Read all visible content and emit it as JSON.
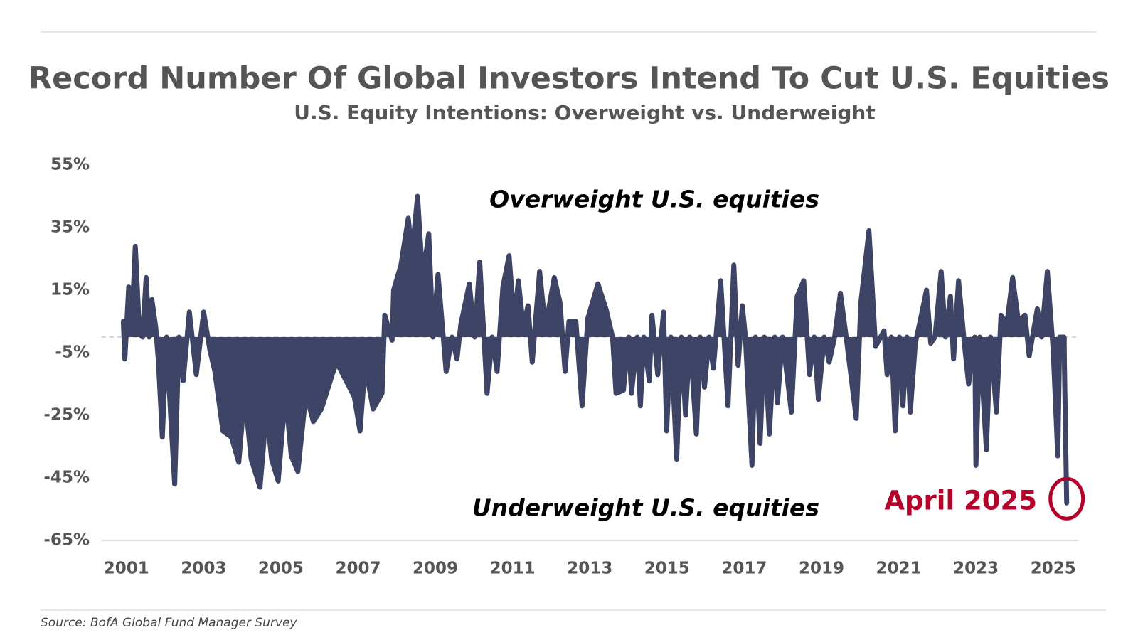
{
  "chart_data": {
    "type": "area",
    "title": "Record Number Of Global Investors Intend To Cut U.S. Equities",
    "subtitle": "U.S. Equity Intentions: Overweight vs. Underweight",
    "annotations": [
      "Overweight U.S. equities",
      "Underweight U.S. equities",
      "April 2025"
    ],
    "source": "Source: BofA Global Fund Manager Survey",
    "color": "#3d4466",
    "xlim": [
      2000.36,
      2025.65
    ],
    "xticks": [
      2001,
      2003,
      2005,
      2007,
      2009,
      2011,
      2013,
      2015,
      2017,
      2019,
      2021,
      2023,
      2025
    ],
    "ylim": [
      -65,
      55
    ],
    "yticks": [
      {
        "value": 55,
        "label": "55%"
      },
      {
        "value": 35,
        "label": "35%"
      },
      {
        "value": 15,
        "label": "15%"
      },
      {
        "value": -5,
        "label": "-5%"
      },
      {
        "value": -25,
        "label": "-25%"
      },
      {
        "value": -45,
        "label": "-45%"
      },
      {
        "value": -65,
        "label": "-65%"
      }
    ],
    "x": [
      2000.92,
      2000.96,
      2001.06,
      2001.13,
      2001.23,
      2001.34,
      2001.42,
      2001.51,
      2001.59,
      2001.66,
      2001.76,
      2001.83,
      2001.93,
      2002.04,
      2002.15,
      2002.25,
      2002.36,
      2002.47,
      2002.63,
      2002.81,
      2003.0,
      2003.16,
      2003.29,
      2003.5,
      2003.72,
      2003.91,
      2004.06,
      2004.23,
      2004.46,
      2004.63,
      2004.76,
      2004.93,
      2005.12,
      2005.27,
      2005.44,
      2005.65,
      2005.84,
      2006.05,
      2006.33,
      2006.44,
      2006.69,
      2006.9,
      2007.05,
      2007.18,
      2007.39,
      2007.62,
      2007.69,
      2007.88,
      2007.92,
      2008.11,
      2008.3,
      2008.39,
      2008.54,
      2008.67,
      2008.83,
      2008.94,
      2009.07,
      2009.28,
      2009.43,
      2009.56,
      2009.66,
      2009.88,
      2010.02,
      2010.15,
      2010.34,
      2010.47,
      2010.6,
      2010.75,
      2010.91,
      2011.04,
      2011.15,
      2011.28,
      2011.4,
      2011.51,
      2011.7,
      2011.85,
      2012.08,
      2012.23,
      2012.36,
      2012.46,
      2012.64,
      2012.8,
      2012.95,
      2013.21,
      2013.42,
      2013.59,
      2013.68,
      2013.87,
      2014.01,
      2014.08,
      2014.23,
      2014.31,
      2014.4,
      2014.54,
      2014.61,
      2014.76,
      2014.91,
      2014.99,
      2015.1,
      2015.25,
      2015.37,
      2015.48,
      2015.59,
      2015.76,
      2015.86,
      2015.97,
      2016.09,
      2016.2,
      2016.39,
      2016.58,
      2016.73,
      2016.84,
      2016.95,
      2017.03,
      2017.2,
      2017.29,
      2017.41,
      2017.52,
      2017.65,
      2017.79,
      2017.86,
      2017.99,
      2018.22,
      2018.37,
      2018.54,
      2018.69,
      2018.81,
      2018.92,
      2019.07,
      2019.2,
      2019.34,
      2019.49,
      2019.64,
      2019.9,
      2020.02,
      2020.23,
      2020.4,
      2020.62,
      2020.7,
      2020.81,
      2020.91,
      2021.02,
      2021.11,
      2021.21,
      2021.3,
      2021.43,
      2021.57,
      2021.72,
      2021.83,
      2021.94,
      2022.1,
      2022.21,
      2022.34,
      2022.42,
      2022.55,
      2022.7,
      2022.81,
      2022.97,
      2023.0,
      2023.1,
      2023.27,
      2023.38,
      2023.53,
      2023.65,
      2023.8,
      2023.95,
      2024.1,
      2024.27,
      2024.38,
      2024.59,
      2024.7,
      2024.85,
      2025.0,
      2025.12,
      2025.17,
      2025.28,
      2025.35
    ],
    "values": [
      5,
      -7,
      16,
      1,
      29,
      1,
      0,
      19,
      0,
      12,
      3,
      -8,
      -32,
      0,
      -26,
      -47,
      0,
      -14,
      8,
      -12,
      8,
      -4,
      -11,
      -30,
      -32,
      -40,
      -18,
      -39,
      -48,
      -23,
      -39,
      -46,
      -18,
      -38,
      -43,
      -18,
      -27,
      -23,
      -12,
      -8,
      -14,
      -19,
      -30,
      -9,
      -23,
      -18,
      7,
      -1,
      15,
      23,
      38,
      26,
      45,
      19,
      33,
      0,
      20,
      -11,
      0,
      -7,
      4,
      17,
      0,
      24,
      -18,
      0,
      -11,
      16,
      26,
      5,
      18,
      3,
      10,
      -8,
      21,
      3,
      19,
      11,
      -11,
      5,
      5,
      -22,
      6,
      17,
      9,
      0,
      -18,
      -17,
      0,
      -18,
      0,
      -22,
      0,
      -14,
      7,
      -12,
      8,
      -30,
      0,
      -39,
      0,
      -25,
      0,
      -31,
      0,
      -16,
      0,
      -10,
      18,
      -22,
      23,
      -9,
      10,
      0,
      -41,
      0,
      -34,
      0,
      -31,
      0,
      -21,
      0,
      -24,
      13,
      18,
      -12,
      0,
      -20,
      0,
      -8,
      0,
      14,
      0,
      -26,
      11,
      34,
      -3,
      2,
      -12,
      0,
      -30,
      0,
      -22,
      0,
      -24,
      -2,
      6,
      15,
      -2,
      0,
      21,
      0,
      13,
      -7,
      18,
      -2,
      -15,
      0,
      -41,
      0,
      -36,
      0,
      -24,
      7,
      4,
      19,
      5,
      7,
      -6,
      9,
      0,
      21,
      -4,
      -38,
      0,
      0,
      -53
    ]
  }
}
